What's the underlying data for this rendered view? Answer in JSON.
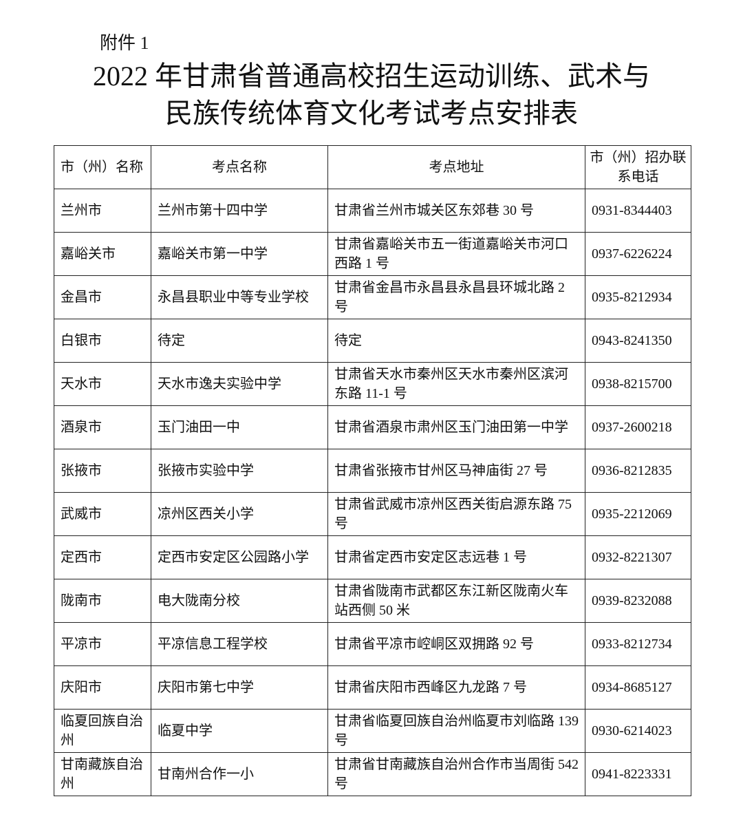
{
  "attachment": "附件 1",
  "title_line1": "2022 年甘肃省普通高校招生运动训练、武术与",
  "title_line2": "民族传统体育文化考试考点安排表",
  "table": {
    "headers": [
      "市（州）名称",
      "考点名称",
      "考点地址",
      "市（州）招办联系电话"
    ],
    "rows": [
      [
        "兰州市",
        "兰州市第十四中学",
        "甘肃省兰州市城关区东郊巷 30 号",
        "0931-8344403"
      ],
      [
        "嘉峪关市",
        "嘉峪关市第一中学",
        "甘肃省嘉峪关市五一街道嘉峪关市河口西路 1 号",
        "0937-6226224"
      ],
      [
        "金昌市",
        "永昌县职业中等专业学校",
        "甘肃省金昌市永昌县永昌县环城北路 2 号",
        "0935-8212934"
      ],
      [
        "白银市",
        "待定",
        "待定",
        "0943-8241350"
      ],
      [
        "天水市",
        "天水市逸夫实验中学",
        "甘肃省天水市秦州区天水市秦州区滨河东路 11-1 号",
        "0938-8215700"
      ],
      [
        "酒泉市",
        "玉门油田一中",
        "甘肃省酒泉市肃州区玉门油田第一中学",
        "0937-2600218"
      ],
      [
        "张掖市",
        "张掖市实验中学",
        "甘肃省张掖市甘州区马神庙街 27 号",
        "0936-8212835"
      ],
      [
        "武威市",
        "凉州区西关小学",
        "甘肃省武威市凉州区西关街启源东路 75 号",
        "0935-2212069"
      ],
      [
        "定西市",
        "定西市安定区公园路小学",
        "甘肃省定西市安定区志远巷 1 号",
        "0932-8221307"
      ],
      [
        "陇南市",
        "电大陇南分校",
        "甘肃省陇南市武都区东江新区陇南火车站西侧 50 米",
        "0939-8232088"
      ],
      [
        "平凉市",
        "平凉信息工程学校",
        "甘肃省平凉市崆峒区双拥路 92 号",
        "0933-8212734"
      ],
      [
        "庆阳市",
        "庆阳市第七中学",
        "甘肃省庆阳市西峰区九龙路 7 号",
        "0934-8685127"
      ],
      [
        "临夏回族自治州",
        "临夏中学",
        "甘肃省临夏回族自治州临夏市刘临路 139 号",
        "0930-6214023"
      ],
      [
        "甘南藏族自治州",
        "甘南州合作一小",
        "甘肃省甘南藏族自治州合作市当周街 542 号",
        "0941-8223331"
      ]
    ]
  }
}
